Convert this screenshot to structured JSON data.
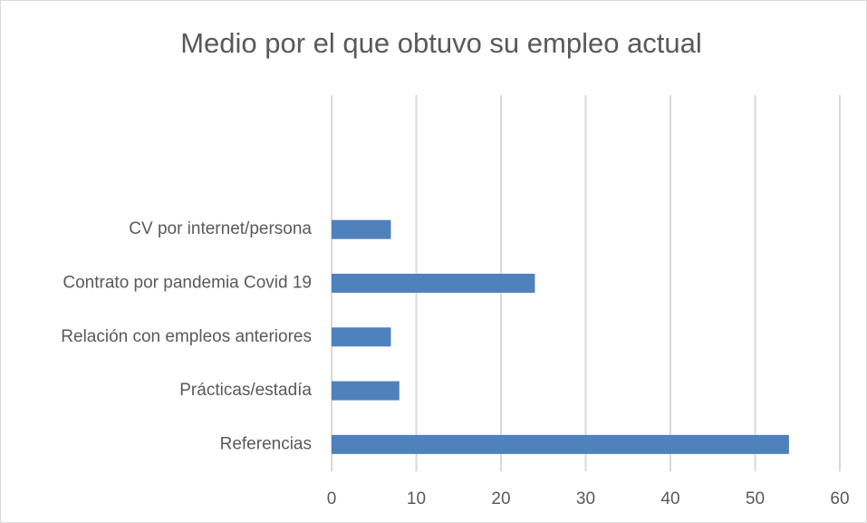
{
  "chart_data": {
    "type": "bar",
    "orientation": "horizontal",
    "title": "Medio por el que obtuvo su empleo actual",
    "categories": [
      "Referencias",
      "Prácticas/estadía",
      "Relación con empleos anteriores",
      "Contrato por pandemia Covid 19",
      "CV por internet/persona",
      null,
      null
    ],
    "values": [
      54,
      8,
      7,
      24,
      7,
      null,
      null
    ],
    "color": "#4f81bd",
    "xlim": [
      0,
      60
    ],
    "xticks": [
      0,
      10,
      20,
      30,
      40,
      50,
      60
    ],
    "grid": true
  }
}
